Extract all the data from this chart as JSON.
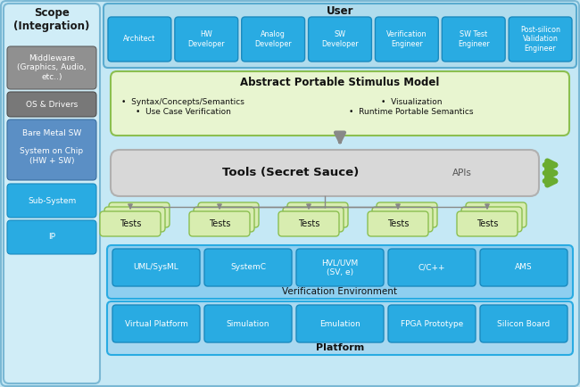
{
  "bg_color": "#c5e8f5",
  "scope_bg": "#d0edf7",
  "scope_border": "#7ab8d4",
  "scope_title": "Scope\n(Integration)",
  "scope_items": [
    {
      "label": "Middleware\n(Graphics, Audio,\netc..)",
      "bg": "#909090"
    },
    {
      "label": "OS & Drivers",
      "bg": "#787878"
    },
    {
      "label": "Bare Metal SW\n\nSystem on Chip\n(HW + SW)",
      "bg": "#5a8ab8"
    },
    {
      "label": "Sub-System",
      "bg": "#29abe2"
    },
    {
      "label": "IP",
      "bg": "#29abe2"
    }
  ],
  "user_bg": "#a8d8f0",
  "user_border": "#5aabcf",
  "user_label": "User",
  "user_boxes": [
    "Architect",
    "HW\nDeveloper",
    "Analog\nDeveloper",
    "SW\nDeveloper",
    "Verification\nEngineer",
    "SW Test\nEngineer",
    "Post-silicon\nValidation\nEngineer"
  ],
  "user_box_color": "#29abe2",
  "abstract_title": "Abstract Portable Stimulus Model",
  "abstract_bg": "#e8f5d0",
  "abstract_border": "#8bbf50",
  "bullets_left": "•  Syntax/Concepts/Semantics\n•  Use Case Verification",
  "bullets_right": "•  Visualization\n•  Runtime Portable Semantics",
  "tools_label": "Tools (Secret Sauce)",
  "tools_apis": "APIs",
  "tools_bg": "#d8d8d8",
  "tools_border": "#b0b0b0",
  "tests_label": "Tests",
  "tests_bg": "#d8edb0",
  "tests_border": "#8bbf50",
  "verif_label": "Verification Environment",
  "verif_bg": "#8ecff0",
  "verif_border": "#29abe2",
  "verif_boxes": [
    "UML/SysML",
    "SystemC",
    "HVL/UVM\n(SV, e)",
    "C/C++",
    "AMS"
  ],
  "verif_box_bg": "#29abe2",
  "plat_label": "Platform",
  "plat_bg": "#a8d8f0",
  "plat_border": "#29abe2",
  "plat_boxes": [
    "Virtual Platform",
    "Simulation",
    "Emulation",
    "FPGA Prototype",
    "Silicon Board"
  ],
  "plat_box_bg": "#29abe2",
  "green_arrow": "#6aac30",
  "gray_line": "#999999"
}
